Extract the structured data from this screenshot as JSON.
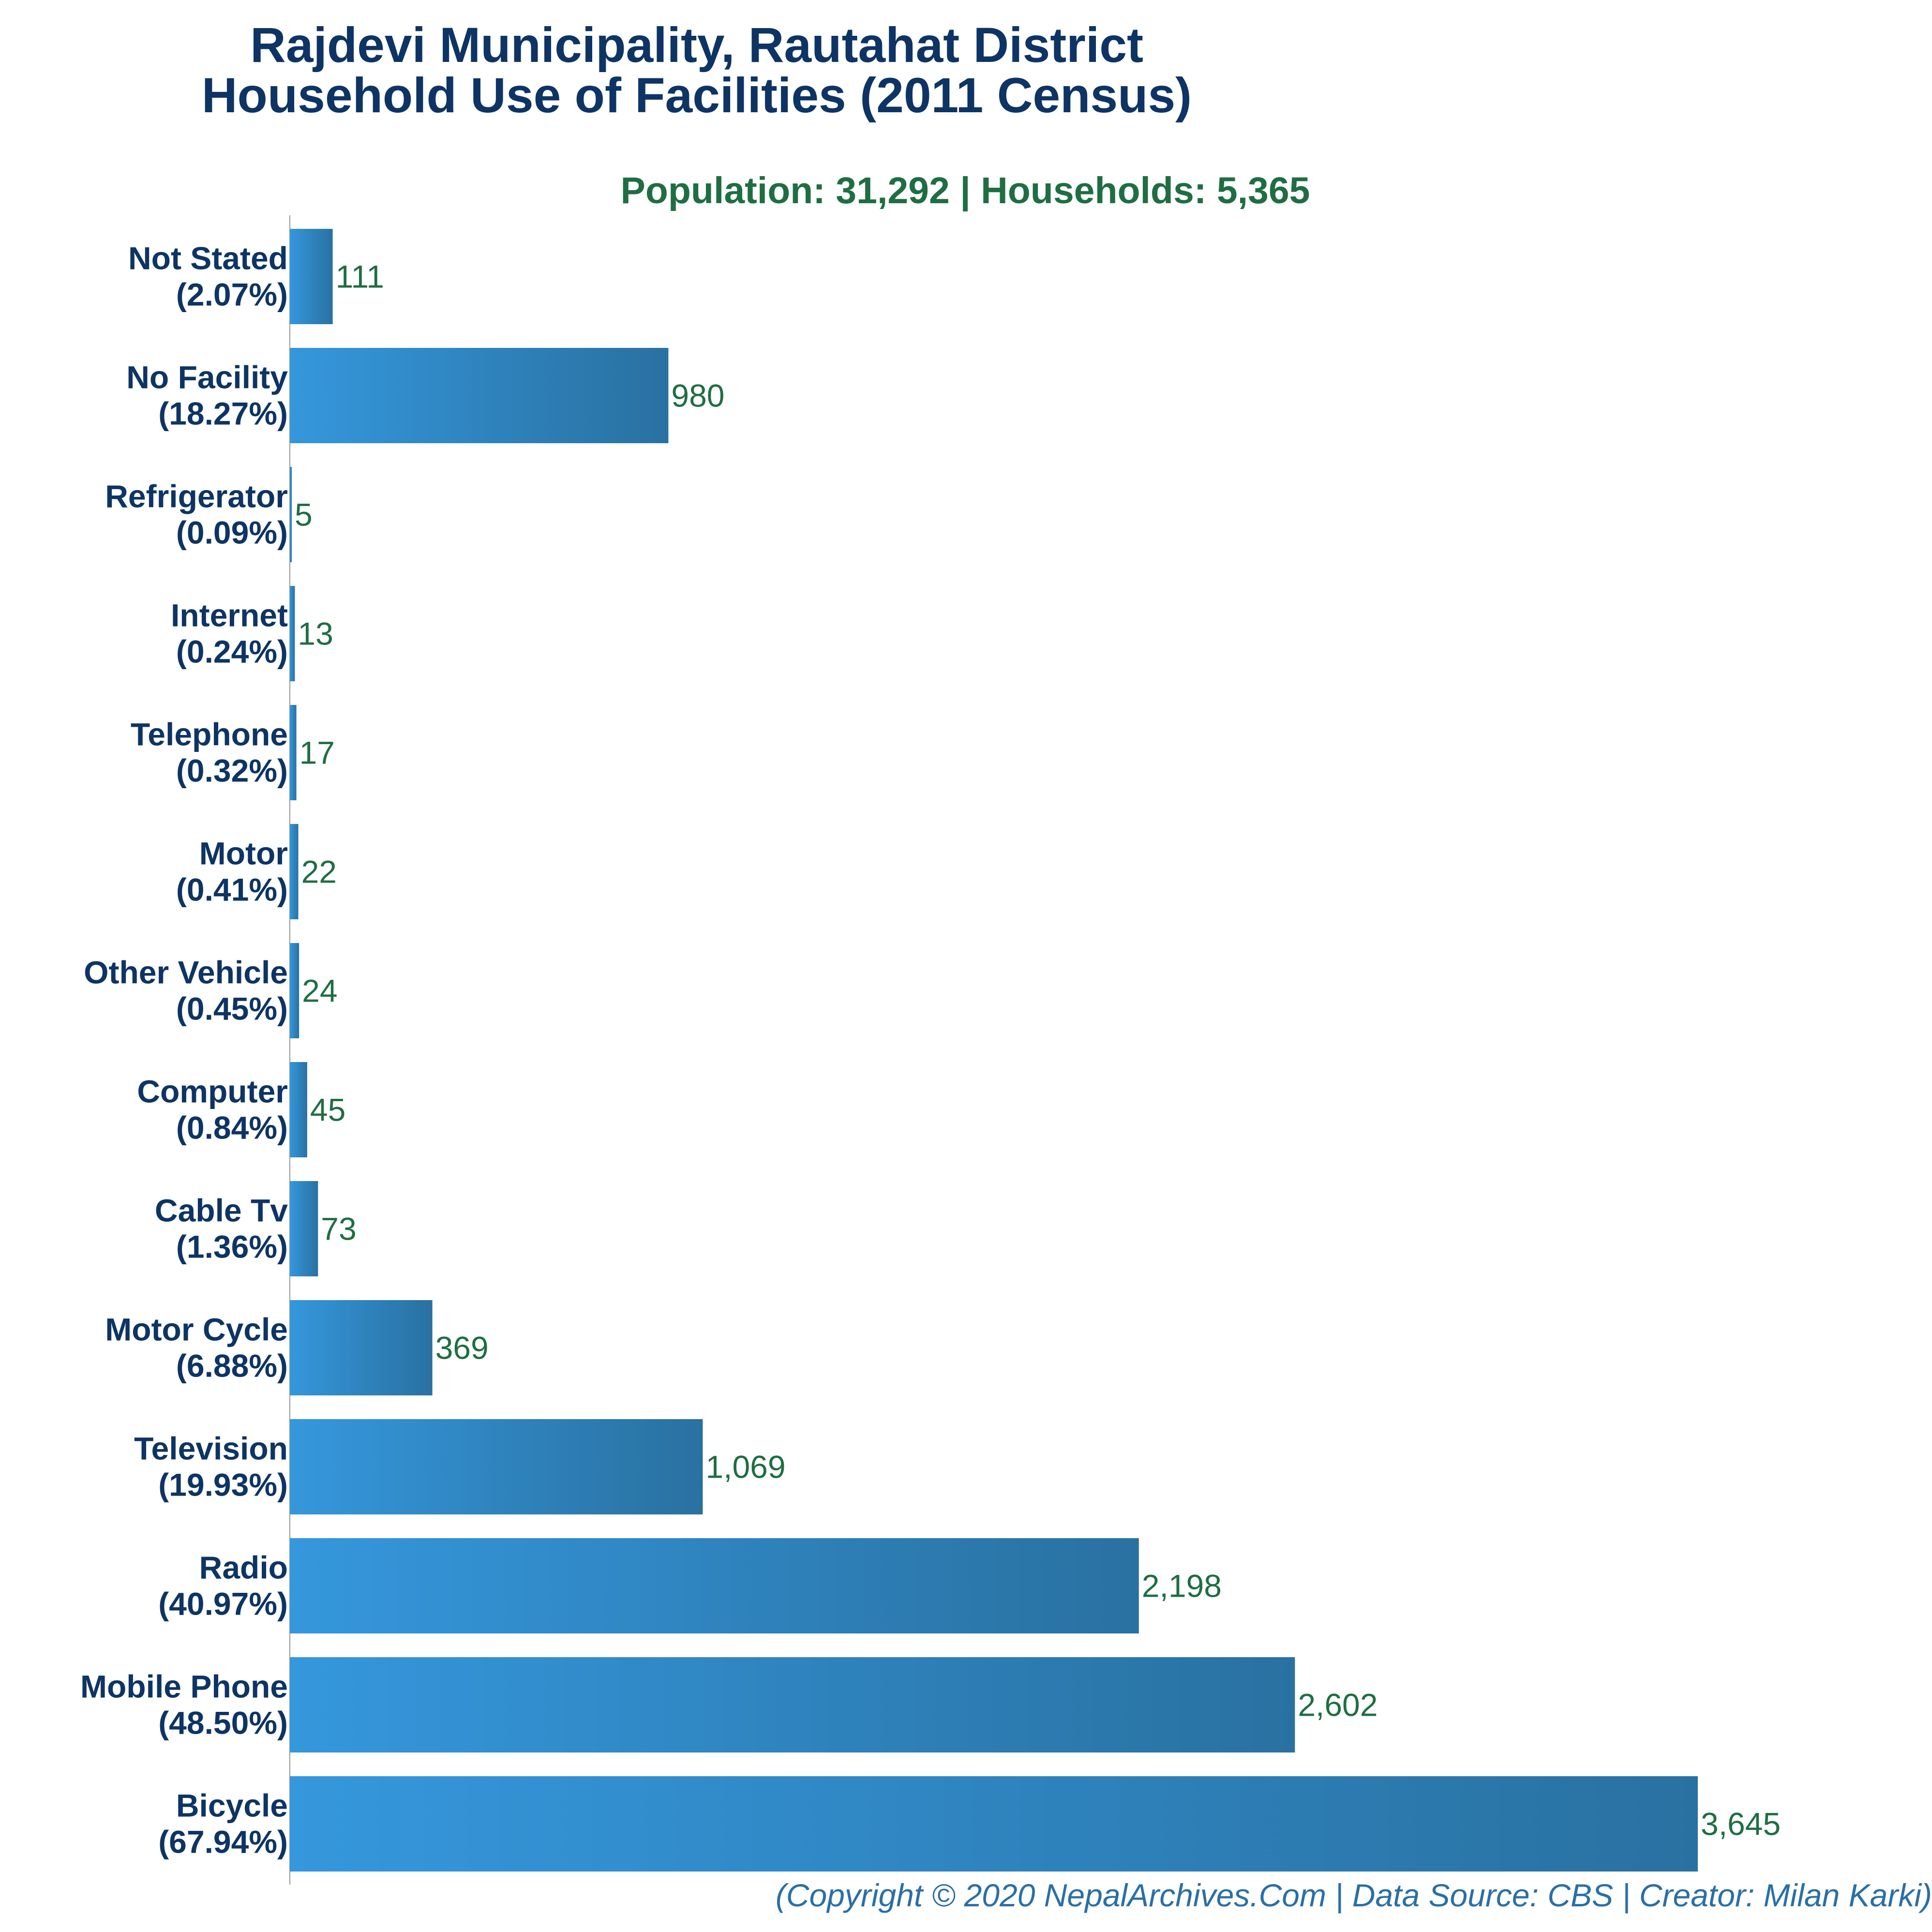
{
  "header": {
    "title_line1": "Rajdevi Municipality, Rautahat District",
    "title_line2": "Household Use of Facilities (2011 Census)",
    "subtitle": "Population: 31,292 | Households: 5,365"
  },
  "footer": {
    "credit": "(Copyright © 2020 NepalArchives.Com | Data Source: CBS | Creator: Milan Karki)"
  },
  "colors": {
    "bar_light": "#3597dc",
    "bar_dark": "#2971a1",
    "title": "#0d3464",
    "value_label": "#1f6e43",
    "axis": "#999999"
  },
  "chart_data": {
    "type": "bar",
    "orientation": "horizontal",
    "categories": [
      "Not Stated",
      "No Facility",
      "Refrigerator",
      "Internet",
      "Telephone",
      "Motor",
      "Other Vehicle",
      "Computer",
      "Cable Tv",
      "Motor Cycle",
      "Television",
      "Radio",
      "Mobile Phone",
      "Bicycle"
    ],
    "percent_labels": [
      "(2.07%)",
      "(18.27%)",
      "(0.09%)",
      "(0.24%)",
      "(0.32%)",
      "(0.41%)",
      "(0.45%)",
      "(0.84%)",
      "(1.36%)",
      "(6.88%)",
      "(19.93%)",
      "(40.97%)",
      "(48.50%)",
      "(67.94%)"
    ],
    "values": [
      111,
      980,
      5,
      13,
      17,
      22,
      24,
      45,
      73,
      369,
      1069,
      2198,
      2602,
      3645
    ],
    "value_labels": [
      "111",
      "980",
      "5",
      "13",
      "17",
      "22",
      "24",
      "45",
      "73",
      "369",
      "1,069",
      "2,198",
      "2,602",
      "3,645"
    ],
    "xlim": [
      0,
      3645
    ],
    "grid": false,
    "legend": "none"
  }
}
